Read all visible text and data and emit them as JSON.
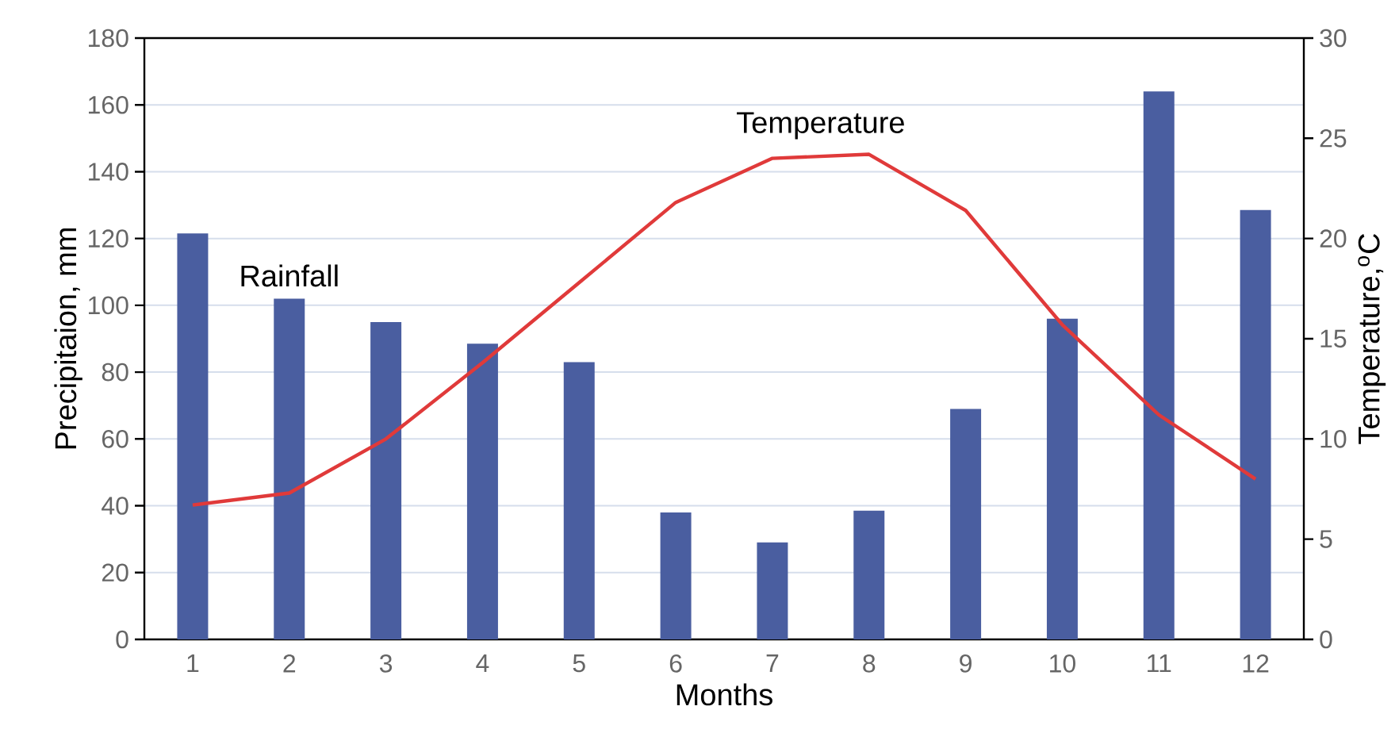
{
  "chart_data": {
    "type": "bar",
    "xlabel": "Months",
    "ylabel": "Precipitaion, mm",
    "y2label": "Temperature,$^{o}$C",
    "categories": [
      "1",
      "2",
      "3",
      "4",
      "5",
      "6",
      "7",
      "8",
      "9",
      "10",
      "11",
      "12"
    ],
    "series": [
      {
        "name": "Rainfall",
        "color": "#4a5ea0",
        "values": [
          121.5,
          102,
          95,
          88.5,
          83,
          38,
          29,
          38.5,
          69,
          96,
          164,
          128.5
        ]
      },
      {
        "name": "Temperature",
        "type": "line",
        "axis": "y2",
        "color": "#e03a3a",
        "values": [
          6.7,
          7.3,
          10.0,
          13.8,
          17.8,
          21.8,
          24.0,
          24.2,
          21.4,
          15.7,
          11.2,
          8.0
        ]
      }
    ],
    "ylim": [
      0,
      180
    ],
    "yticks": [
      0,
      20,
      40,
      60,
      80,
      100,
      120,
      140,
      160,
      180
    ],
    "y2lim": [
      0,
      30
    ],
    "y2ticks": [
      0,
      5,
      10,
      15,
      20,
      25,
      30
    ],
    "grid": "y"
  }
}
